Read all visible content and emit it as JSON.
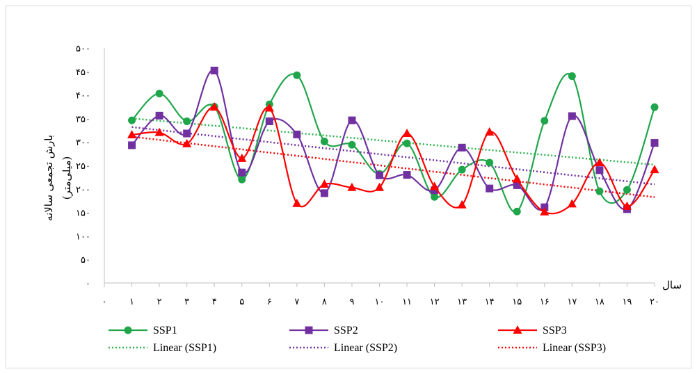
{
  "chart_data": {
    "type": "line",
    "xlabel": "سال",
    "ylabel_line1": "بارش تجمعی سالانه",
    "ylabel_line2": "(میلی‌متر)",
    "x_ticks": [
      "۰",
      "۱",
      "۲",
      "۳",
      "۴",
      "۵",
      "۶",
      "۷",
      "۸",
      "۹",
      "۱۰",
      "۱۱",
      "۱۲",
      "۱۳",
      "۱۴",
      "۱۵",
      "۱۶",
      "۱۷",
      "۱۸",
      "۱۹",
      "۲۰"
    ],
    "y_ticks": [
      "۰",
      "۵۰",
      "۱۰۰",
      "۱۵۰",
      "۲۰۰",
      "۲۵۰",
      "۳۰۰",
      "۳۵۰",
      "۴۰۰",
      "۴۵۰",
      "۵۰۰"
    ],
    "xlim": [
      0,
      20
    ],
    "ylim": [
      0,
      500
    ],
    "x": [
      1,
      2,
      3,
      4,
      5,
      6,
      7,
      8,
      9,
      10,
      11,
      12,
      13,
      14,
      15,
      16,
      17,
      18,
      19,
      20
    ],
    "grid": false,
    "legend_position": "bottom",
    "series": [
      {
        "name": "SSP1",
        "color": "#1fa64a",
        "marker": "circle",
        "values": [
          346,
          403,
          344,
          375,
          220,
          380,
          442,
          301,
          294,
          232,
          297,
          183,
          241,
          256,
          152,
          345,
          440,
          195,
          198,
          374
        ]
      },
      {
        "name": "SSP2",
        "color": "#7030a0",
        "marker": "square",
        "values": [
          293,
          356,
          318,
          452,
          235,
          344,
          316,
          191,
          346,
          229,
          230,
          197,
          288,
          201,
          208,
          161,
          355,
          240,
          157,
          298
        ]
      },
      {
        "name": "SSP3",
        "color": "#ff0000",
        "marker": "triangle",
        "values": [
          315,
          320,
          296,
          374,
          265,
          372,
          169,
          210,
          203,
          203,
          318,
          205,
          166,
          321,
          221,
          151,
          168,
          256,
          163,
          241
        ]
      }
    ],
    "trendlines": [
      {
        "name": "Linear (SSP1)",
        "color": "#2db34a"
      },
      {
        "name": "Linear (SSP2)",
        "color": "#7030a0"
      },
      {
        "name": "Linear (SSP3)",
        "color": "#ff0000"
      }
    ]
  }
}
